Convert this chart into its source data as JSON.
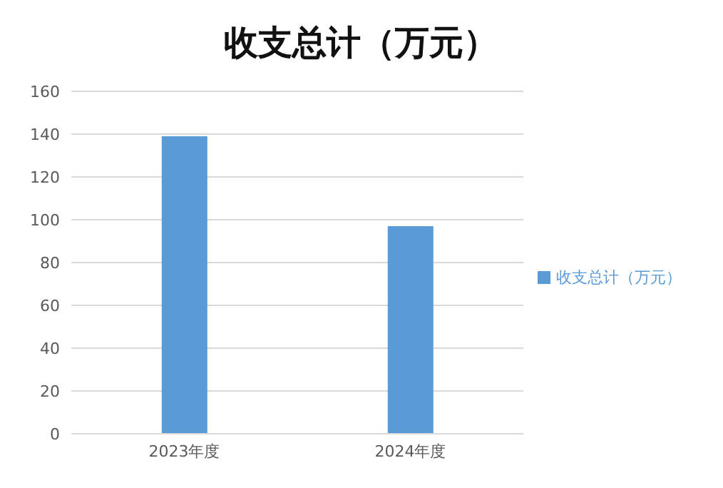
{
  "chart_data": {
    "type": "bar",
    "title": "收支总计（万元）",
    "categories": [
      "2023年度",
      "2024年度"
    ],
    "series": [
      {
        "name": "收支总计（万元）",
        "color": "#5b9bd5",
        "values": [
          139,
          97
        ]
      }
    ],
    "ylim": [
      0,
      160
    ],
    "yticks": [
      0,
      20,
      40,
      60,
      80,
      100,
      120,
      140,
      160
    ],
    "grid": "y",
    "legend": "right"
  }
}
